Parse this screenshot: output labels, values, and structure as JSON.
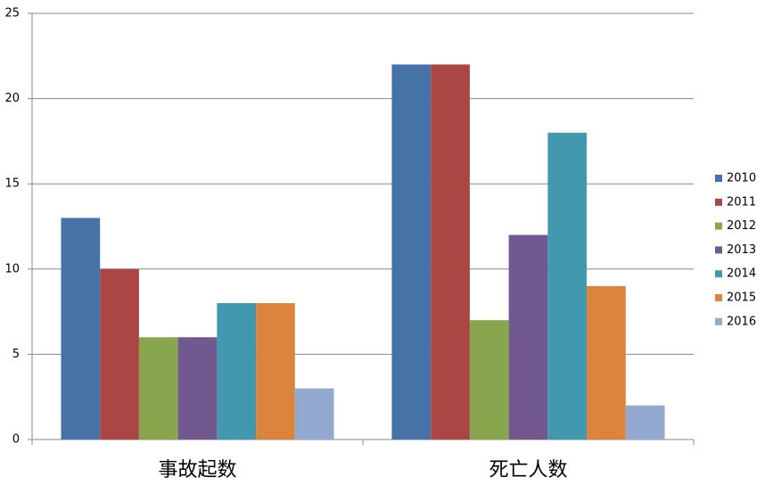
{
  "chart_data": {
    "type": "bar",
    "categories": [
      "事故起数",
      "死亡人数"
    ],
    "series": [
      {
        "name": "2010",
        "color": "#4572a7",
        "values": [
          13,
          22
        ]
      },
      {
        "name": "2011",
        "color": "#aa4643",
        "values": [
          10,
          22
        ]
      },
      {
        "name": "2012",
        "color": "#89a54e",
        "values": [
          6,
          7
        ]
      },
      {
        "name": "2013",
        "color": "#71588f",
        "values": [
          6,
          12
        ]
      },
      {
        "name": "2014",
        "color": "#4198af",
        "values": [
          8,
          18
        ]
      },
      {
        "name": "2015",
        "color": "#db843d",
        "values": [
          8,
          9
        ]
      },
      {
        "name": "2016",
        "color": "#93a9cf",
        "values": [
          3,
          2
        ]
      }
    ],
    "ylim": [
      0,
      25
    ],
    "yticks": [
      0,
      5,
      10,
      15,
      20,
      25
    ],
    "grid": true,
    "legend": "right"
  }
}
